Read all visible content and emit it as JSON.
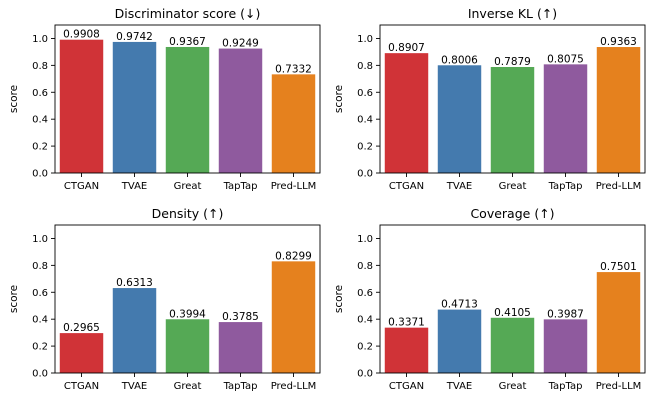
{
  "chart_data": [
    {
      "type": "bar",
      "title": "Discriminator score (↓)",
      "ylabel": "score",
      "xlabel": "",
      "ylim": [
        0,
        1.1
      ],
      "yticks": [
        "0.0",
        "0.2",
        "0.4",
        "0.6",
        "0.8",
        "1.0"
      ],
      "categories": [
        "CTGAN",
        "TVAE",
        "Great",
        "TapTap",
        "Pred-LLM"
      ],
      "values": [
        0.9908,
        0.9742,
        0.9367,
        0.9249,
        0.7332
      ],
      "labels": [
        "0.9908",
        "0.9742",
        "0.9367",
        "0.9249",
        "0.7332"
      ],
      "colors": [
        "#d03337",
        "#447aae",
        "#55a955",
        "#8f5a9e",
        "#e5811e"
      ],
      "grid": false
    },
    {
      "type": "bar",
      "title": "Inverse KL (↑)",
      "ylabel": "score",
      "xlabel": "",
      "ylim": [
        0,
        1.1
      ],
      "yticks": [
        "0.0",
        "0.2",
        "0.4",
        "0.6",
        "0.8",
        "1.0"
      ],
      "categories": [
        "CTGAN",
        "TVAE",
        "Great",
        "TapTap",
        "Pred-LLM"
      ],
      "values": [
        0.8907,
        0.8006,
        0.7879,
        0.8075,
        0.9363
      ],
      "labels": [
        "0.8907",
        "0.8006",
        "0.7879",
        "0.8075",
        "0.9363"
      ],
      "colors": [
        "#d03337",
        "#447aae",
        "#55a955",
        "#8f5a9e",
        "#e5811e"
      ],
      "grid": false
    },
    {
      "type": "bar",
      "title": "Density (↑)",
      "ylabel": "score",
      "xlabel": "",
      "ylim": [
        0,
        1.1
      ],
      "yticks": [
        "0.0",
        "0.2",
        "0.4",
        "0.6",
        "0.8",
        "1.0"
      ],
      "categories": [
        "CTGAN",
        "TVAE",
        "Great",
        "TapTap",
        "Pred-LLM"
      ],
      "values": [
        0.2965,
        0.6313,
        0.3994,
        0.3785,
        0.8299
      ],
      "labels": [
        "0.2965",
        "0.6313",
        "0.3994",
        "0.3785",
        "0.8299"
      ],
      "colors": [
        "#d03337",
        "#447aae",
        "#55a955",
        "#8f5a9e",
        "#e5811e"
      ],
      "grid": false
    },
    {
      "type": "bar",
      "title": "Coverage (↑)",
      "ylabel": "score",
      "xlabel": "",
      "ylim": [
        0,
        1.1
      ],
      "yticks": [
        "0.0",
        "0.2",
        "0.4",
        "0.6",
        "0.8",
        "1.0"
      ],
      "categories": [
        "CTGAN",
        "TVAE",
        "Great",
        "TapTap",
        "Pred-LLM"
      ],
      "values": [
        0.3371,
        0.4713,
        0.4105,
        0.3987,
        0.7501
      ],
      "labels": [
        "0.3371",
        "0.4713",
        "0.4105",
        "0.3987",
        "0.7501"
      ],
      "colors": [
        "#d03337",
        "#447aae",
        "#55a955",
        "#8f5a9e",
        "#e5811e"
      ],
      "grid": false
    }
  ]
}
